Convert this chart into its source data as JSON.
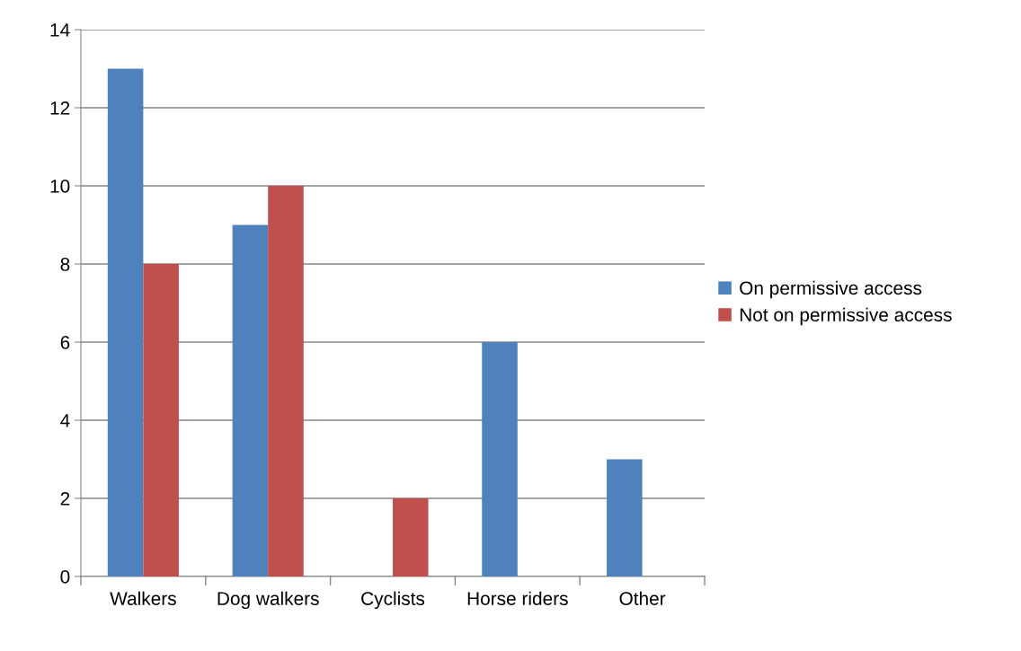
{
  "chart_data": {
    "type": "bar",
    "categories": [
      "Walkers",
      "Dog walkers",
      "Cyclists",
      "Horse riders",
      "Other"
    ],
    "series": [
      {
        "name": "On permissive access",
        "color": "#4f81bd",
        "values": [
          13,
          9,
          0,
          6,
          3
        ]
      },
      {
        "name": "Not on permissive access",
        "color": "#c0504d",
        "values": [
          8,
          10,
          2,
          0,
          0
        ]
      }
    ],
    "ylim": [
      0,
      14
    ],
    "yticks": [
      0,
      2,
      4,
      6,
      8,
      10,
      12,
      14
    ],
    "grid": "y",
    "legend": "right"
  }
}
